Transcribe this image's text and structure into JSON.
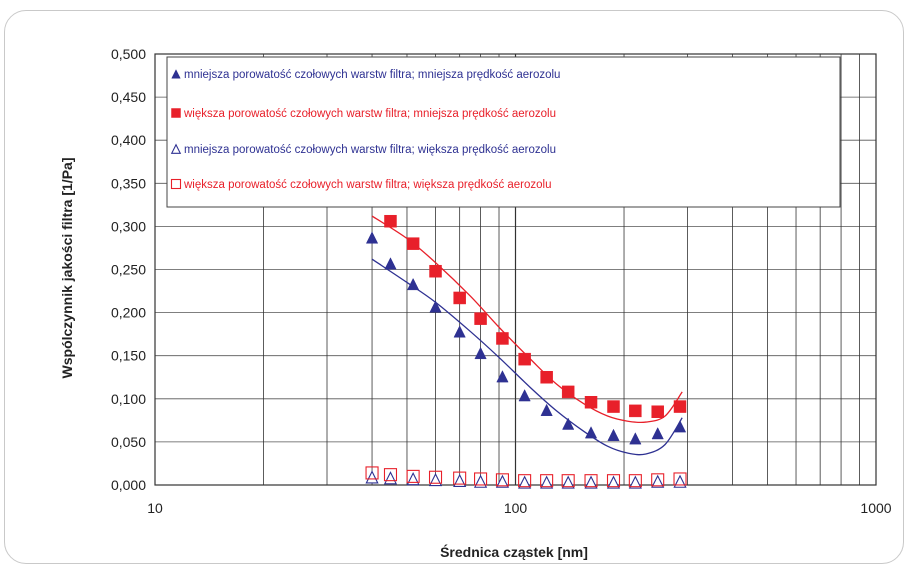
{
  "chart_data": {
    "type": "scatter",
    "title": "",
    "xlabel": "Średnica cząstek [nm]",
    "ylabel": "Wspólczynnik jakości filtra [1/Pa]",
    "xscale": "log",
    "xlim": [
      10,
      1000
    ],
    "ylim": [
      0,
      0.5
    ],
    "x_ticks": [
      "10",
      "100",
      "1000"
    ],
    "y_ticks": [
      "0,000",
      "0,050",
      "0,100",
      "0,150",
      "0,200",
      "0,250",
      "0,300",
      "0,350",
      "0,400",
      "0,450",
      "0,500"
    ],
    "grid": true,
    "legend_position": "top",
    "x": [
      40,
      45,
      52,
      60,
      70,
      80,
      92,
      106,
      122,
      140,
      162,
      187,
      215,
      248,
      286
    ],
    "series": [
      {
        "name": "mniejsza porowatość czołowych warstw filtra; mniejsza prędkość aerozolu",
        "marker": "triangle-filled",
        "color": "#2e3192",
        "values": [
          0.287,
          0.257,
          0.233,
          0.207,
          0.178,
          0.153,
          0.126,
          0.104,
          0.087,
          0.071,
          0.061,
          0.058,
          0.054,
          0.06,
          0.068
        ]
      },
      {
        "name": "większa porowatość czołowych warstw filtra; mniejsza prędkość aerozolu",
        "marker": "square-filled",
        "color": "#e8202a",
        "values": [
          null,
          0.306,
          0.28,
          0.248,
          0.217,
          0.193,
          0.17,
          0.146,
          0.125,
          0.108,
          0.096,
          0.091,
          0.086,
          0.085,
          0.091
        ]
      },
      {
        "name": "mniejsza porowatość czołowych warstw filtra; większa prędkość aerozolu",
        "marker": "triangle-open",
        "color": "#2e3192",
        "values": [
          0.009,
          0.008,
          0.007,
          0.006,
          0.005,
          0.004,
          0.004,
          0.003,
          0.003,
          0.003,
          0.003,
          0.003,
          0.003,
          0.004,
          0.004
        ]
      },
      {
        "name": "większa porowatość czołowych warstw filtra; większa prędkość aerozolu",
        "marker": "square-open",
        "color": "#e8202a",
        "values": [
          0.014,
          0.012,
          0.01,
          0.009,
          0.008,
          0.007,
          0.006,
          0.005,
          0.005,
          0.005,
          0.005,
          0.005,
          0.005,
          0.006,
          0.007
        ]
      }
    ],
    "trendlines": [
      {
        "color": "#2e3192",
        "x": [
          40,
          50,
          60,
          75,
          90,
          110,
          130,
          155,
          180,
          205,
          230,
          260,
          290
        ],
        "values": [
          0.262,
          0.235,
          0.212,
          0.178,
          0.148,
          0.113,
          0.086,
          0.062,
          0.045,
          0.037,
          0.036,
          0.047,
          0.078
        ]
      },
      {
        "color": "#e8202a",
        "x": [
          40,
          50,
          60,
          75,
          90,
          110,
          130,
          155,
          180,
          205,
          230,
          260,
          290
        ],
        "values": [
          0.312,
          0.286,
          0.258,
          0.219,
          0.183,
          0.146,
          0.117,
          0.094,
          0.08,
          0.074,
          0.073,
          0.08,
          0.108
        ]
      }
    ]
  }
}
